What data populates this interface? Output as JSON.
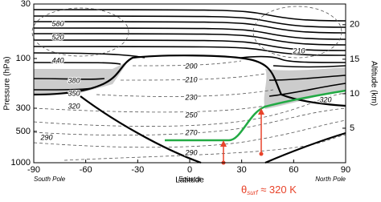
{
  "chart_data": {
    "type": "contour",
    "y_label": "Pressure (hPa)",
    "y2_label": "Altitude (km)",
    "x_label": "Latitude",
    "xlim": [
      -90,
      90
    ],
    "xticks": [
      -90,
      -60,
      -30,
      0,
      30,
      60,
      90
    ],
    "x_region_labels": [
      "South Pole",
      "Equator",
      "North Pole"
    ],
    "ylim": [
      1000,
      30
    ],
    "yticks": [
      30,
      100,
      300,
      500,
      1000
    ],
    "log_y": true,
    "y2lim": [
      0,
      23
    ],
    "y2ticks": [
      5,
      10,
      15,
      20
    ],
    "contour_labels": [
      580,
      520,
      440,
      380,
      350,
      320,
      290,
      200,
      210,
      230,
      250,
      270,
      290,
      210,
      320
    ],
    "annotation": {
      "symbol": "θ",
      "subscript": "surf",
      "text": " ≈ 320 K",
      "color": "#e8432a"
    },
    "highlight_color": "#22aa44",
    "shade_color": "#cccccc"
  }
}
